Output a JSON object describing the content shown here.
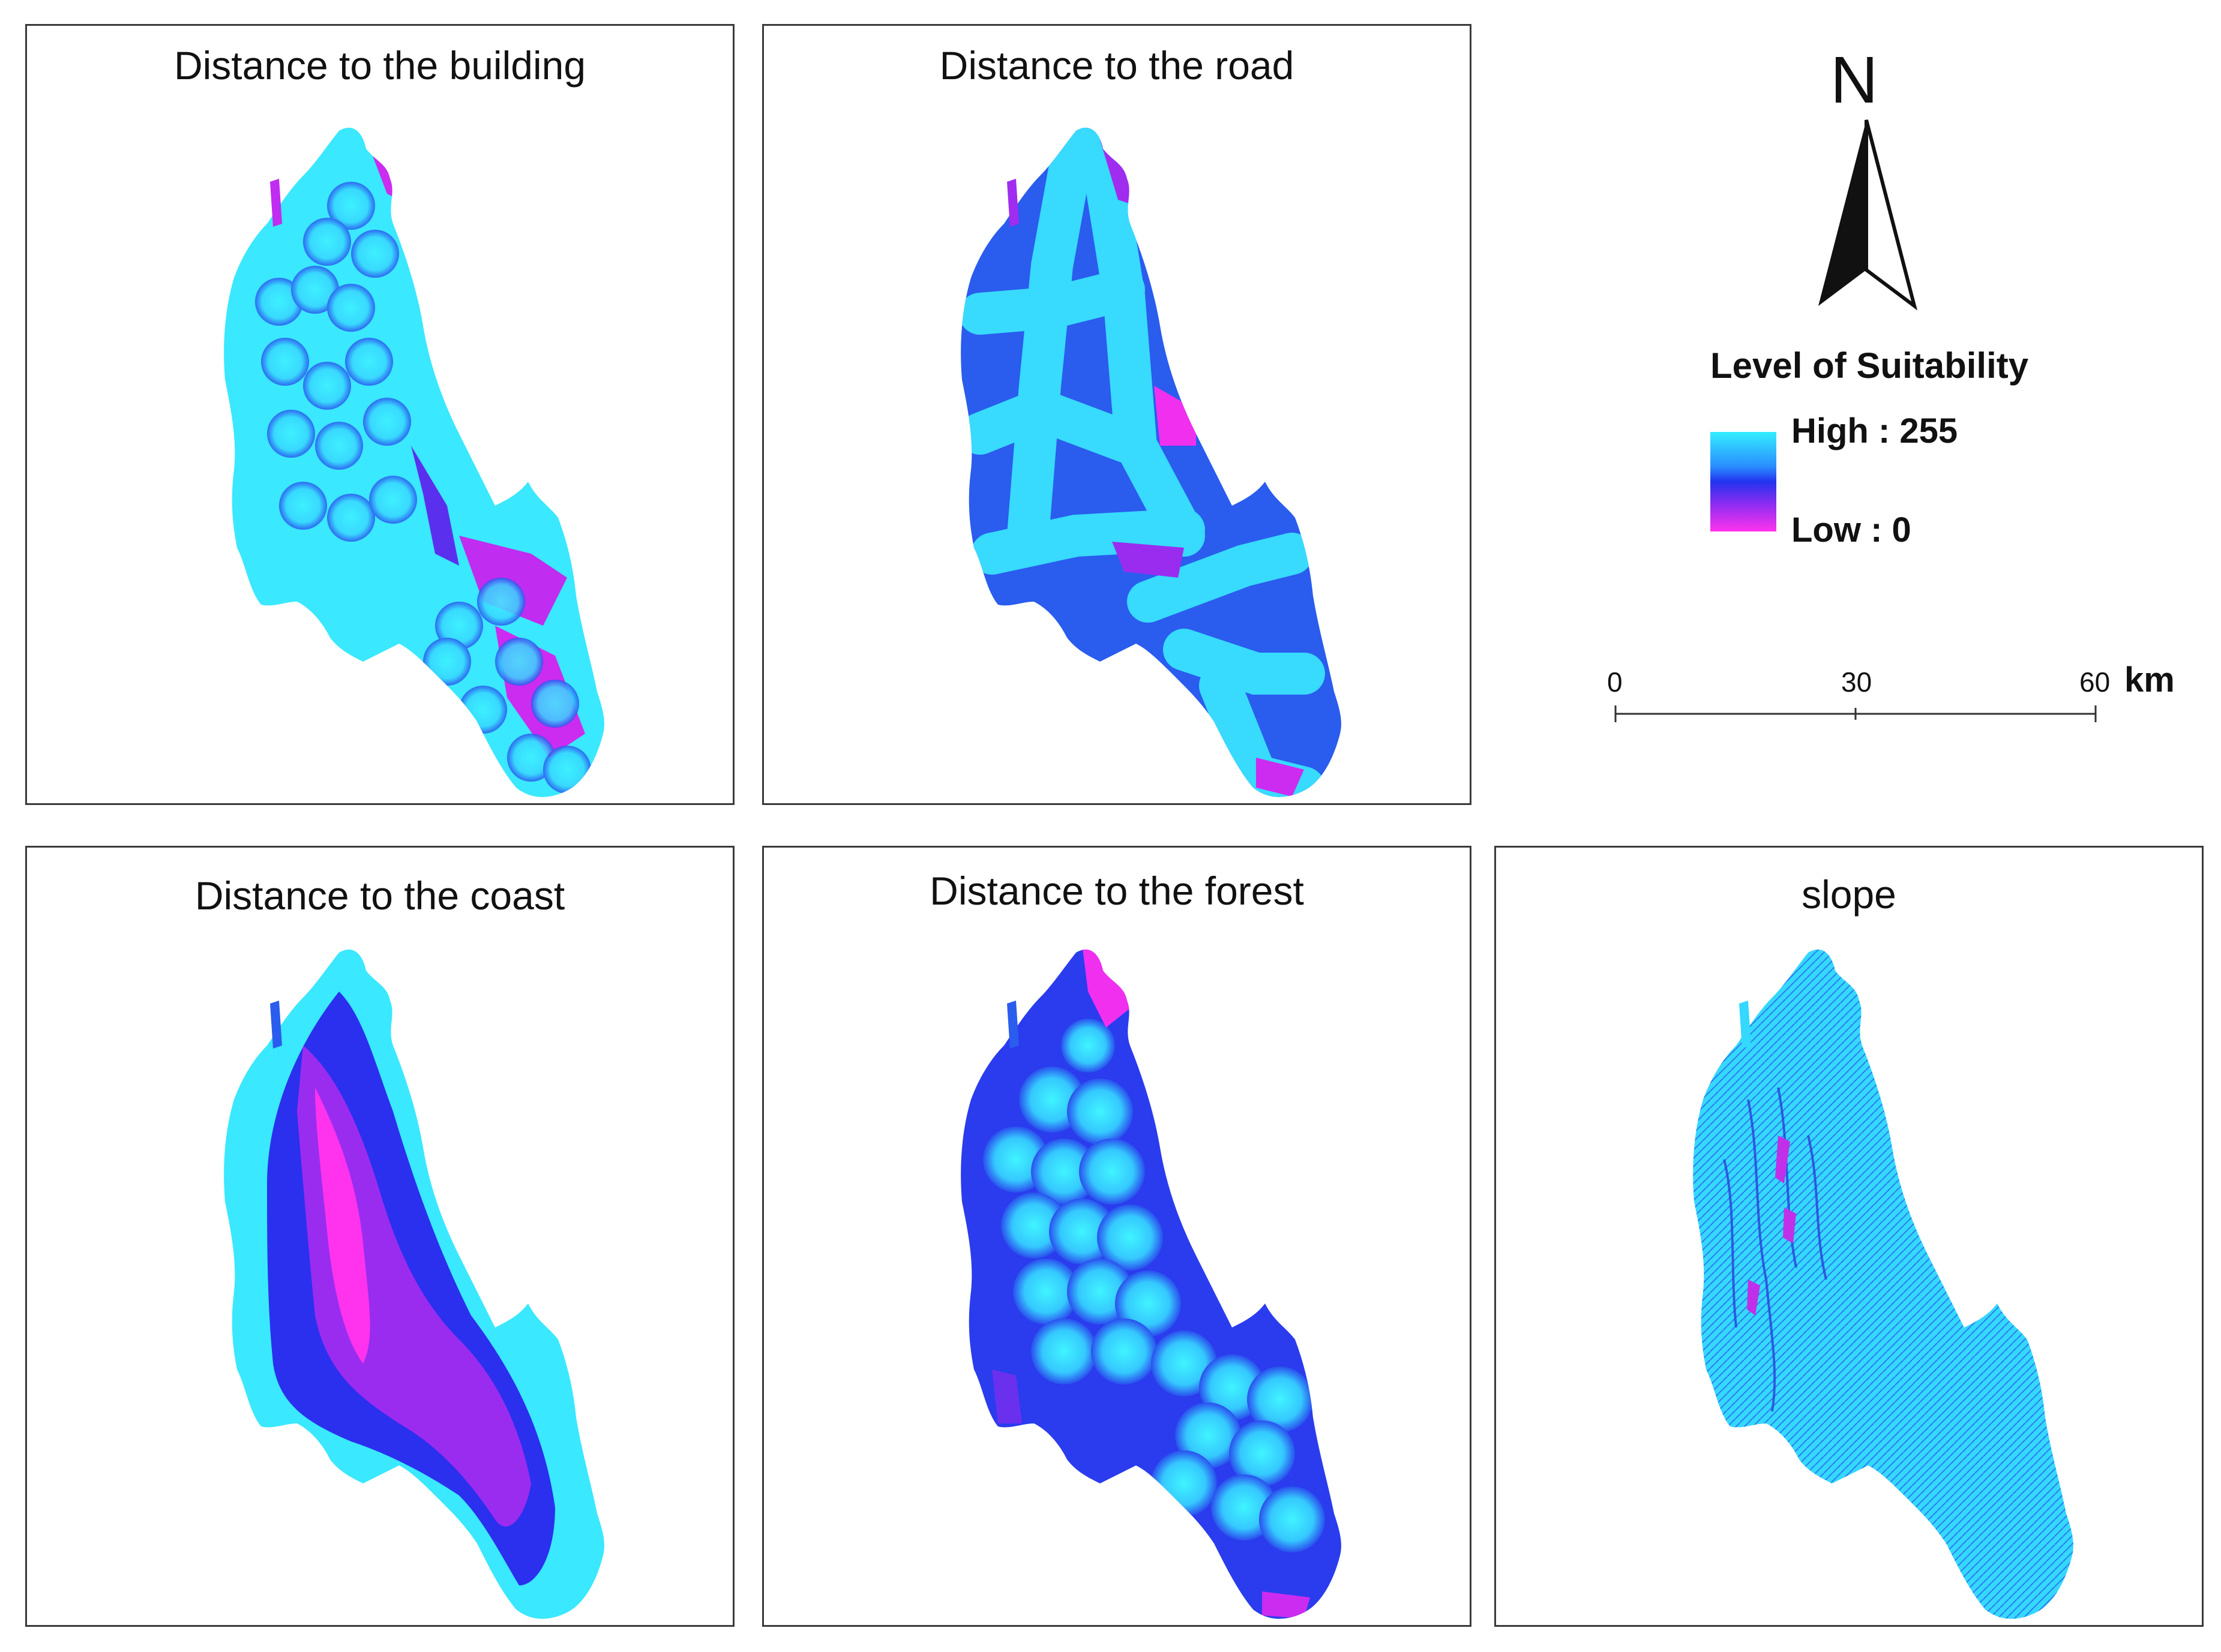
{
  "panels": [
    {
      "id": "building",
      "title": "Distance to the building"
    },
    {
      "id": "road",
      "title": "Distance to the road"
    },
    {
      "id": "coast",
      "title": "Distance to the coast"
    },
    {
      "id": "forest",
      "title": "Distance to the forest"
    },
    {
      "id": "slope",
      "title": "slope"
    }
  ],
  "legend": {
    "title": "Level of Suitability",
    "high_label": "High : 255",
    "low_label": "Low : 0",
    "high_color": "#33eeff",
    "mid_color": "#2233ee",
    "low_color": "#ff33ee"
  },
  "north_arrow": {
    "letter": "N",
    "icon": "north-arrow-icon"
  },
  "scale_bar": {
    "ticks": [
      "0",
      "30",
      "60"
    ],
    "unit": "km"
  }
}
